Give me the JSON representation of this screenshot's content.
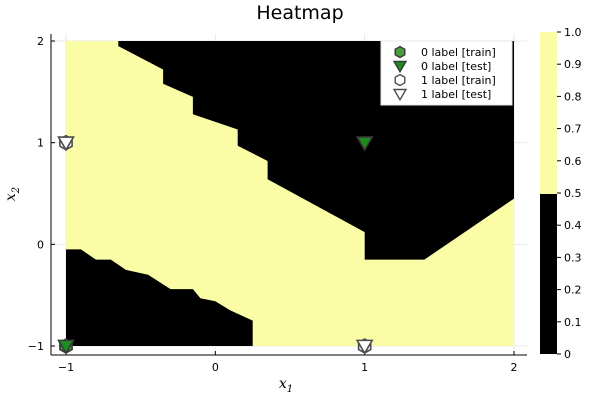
{
  "chart_data": {
    "type": "heatmap",
    "title": "Heatmap",
    "xlabel": "x",
    "xlabel_sub": "1",
    "ylabel": "x",
    "ylabel_sub": "2",
    "xlim": [
      -1.0,
      2.0
    ],
    "ylim": [
      -1.0,
      2.0
    ],
    "xticks": [
      -1,
      0,
      1,
      2
    ],
    "yticks": [
      -1,
      0,
      1,
      2
    ],
    "grid": true,
    "colorbar": {
      "ticks": [
        "0",
        "0.1",
        "0.2",
        "0.3",
        "0.4",
        "0.5",
        "0.6",
        "0.7",
        "0.8",
        "0.9",
        "1.0"
      ],
      "range": [
        0,
        1
      ],
      "threshold": 0.5,
      "colors": {
        "low": "#000000",
        "high": "#fbfca6"
      }
    },
    "regions": [
      {
        "value": 1,
        "color": "#fbfca6",
        "polygon": [
          [
            -1.0,
            2.0
          ],
          [
            -0.65,
            2.0
          ],
          [
            -0.65,
            1.95
          ],
          [
            -0.35,
            1.72
          ],
          [
            -0.35,
            1.58
          ],
          [
            -0.15,
            1.45
          ],
          [
            -0.15,
            1.28
          ],
          [
            0.15,
            1.13
          ],
          [
            0.15,
            0.97
          ],
          [
            0.35,
            0.82
          ],
          [
            0.35,
            0.64
          ],
          [
            1.0,
            0.12
          ],
          [
            1.0,
            -0.15
          ],
          [
            1.4,
            -0.15
          ],
          [
            2.0,
            0.45
          ],
          [
            2.0,
            -1.0
          ],
          [
            0.25,
            -1.0
          ],
          [
            0.25,
            -0.75
          ],
          [
            0.1,
            -0.65
          ],
          [
            0.0,
            -0.56
          ],
          [
            -0.1,
            -0.53
          ],
          [
            -0.15,
            -0.44
          ],
          [
            -0.3,
            -0.44
          ],
          [
            -0.45,
            -0.3
          ],
          [
            -0.6,
            -0.25
          ],
          [
            -0.7,
            -0.15
          ],
          [
            -0.8,
            -0.15
          ],
          [
            -0.9,
            -0.05
          ],
          [
            -1.0,
            -0.05
          ]
        ]
      },
      {
        "value": 0,
        "color": "#000000",
        "note_key": "background"
      }
    ],
    "series": [
      {
        "name": "0 label [train]",
        "marker": "hexagon",
        "color": "#4a9a3e",
        "points": [
          [
            -1,
            -1
          ]
        ]
      },
      {
        "name": "0 label [test]",
        "marker": "triangle-down",
        "color": "#1f8c1f",
        "points": [
          [
            1,
            1
          ],
          [
            -1,
            -1
          ]
        ]
      },
      {
        "name": "1 label [train]",
        "marker": "hexagon",
        "color": "#ffffff",
        "points": [
          [
            -1,
            1
          ],
          [
            1,
            -1
          ]
        ]
      },
      {
        "name": "1 label [test]",
        "marker": "triangle-down",
        "color": "#ffffff",
        "points": [
          [
            -1,
            1
          ],
          [
            1,
            -1
          ]
        ]
      }
    ],
    "legend_position": "top-right"
  }
}
